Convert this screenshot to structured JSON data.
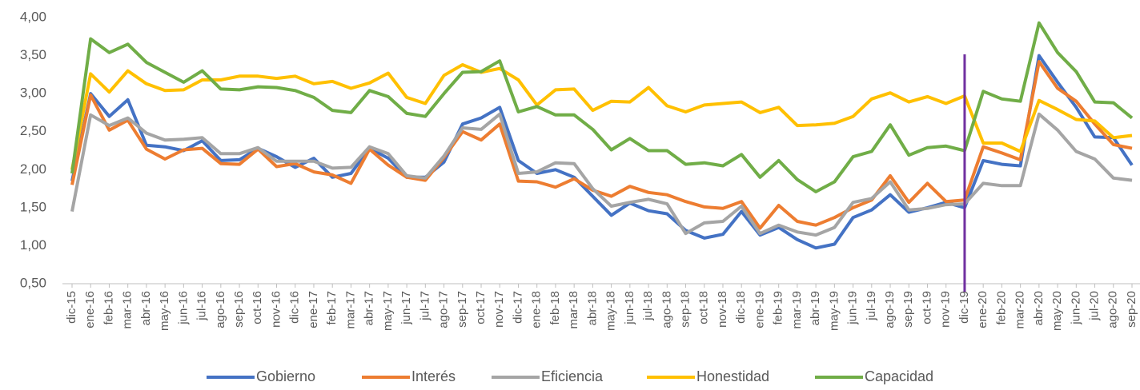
{
  "chart_data": {
    "type": "line",
    "categories": [
      "dic-15",
      "ene-16",
      "feb-16",
      "mar-16",
      "abr-16",
      "may-16",
      "jun-16",
      "jul-16",
      "ago-16",
      "sep-16",
      "oct-16",
      "nov-16",
      "dic-16",
      "ene-17",
      "feb-17",
      "mar-17",
      "abr-17",
      "may-17",
      "jun-17",
      "jul-17",
      "ago-17",
      "sep-17",
      "oct-17",
      "nov-17",
      "dic-17",
      "ene-18",
      "feb-18",
      "mar-18",
      "abr-18",
      "may-18",
      "jun-18",
      "jul-18",
      "ago-18",
      "sep-18",
      "oct-18",
      "nov-18",
      "dic-18",
      "ene-19",
      "feb-19",
      "mar-19",
      "abr-19",
      "may-19",
      "jun-19",
      "jul-19",
      "ago-19",
      "sep-19",
      "oct-19",
      "nov-19",
      "dic-19",
      "ene-20",
      "feb-20",
      "mar-20",
      "abr-20",
      "may-20",
      "jun-20",
      "jul-20",
      "ago-20",
      "sep-20"
    ],
    "series": [
      {
        "name": "Gobierno",
        "color": "#4472c4",
        "values": [
          1.85,
          3.0,
          2.7,
          2.92,
          2.32,
          2.3,
          2.25,
          2.38,
          2.12,
          2.13,
          2.28,
          2.17,
          2.03,
          2.15,
          1.9,
          1.95,
          2.28,
          2.15,
          1.9,
          1.9,
          2.1,
          2.6,
          2.68,
          2.82,
          2.12,
          1.95,
          2.0,
          1.9,
          1.65,
          1.4,
          1.56,
          1.46,
          1.42,
          1.2,
          1.1,
          1.15,
          1.45,
          1.14,
          1.24,
          1.08,
          0.97,
          1.02,
          1.37,
          1.47,
          1.67,
          1.44,
          1.5,
          1.57,
          1.5,
          2.12,
          2.07,
          2.05,
          3.5,
          3.15,
          2.82,
          2.43,
          2.42,
          2.06
        ]
      },
      {
        "name": "Interés",
        "color": "#ed7d31",
        "values": [
          1.8,
          2.98,
          2.52,
          2.65,
          2.27,
          2.14,
          2.26,
          2.28,
          2.08,
          2.07,
          2.27,
          2.04,
          2.08,
          1.97,
          1.93,
          1.82,
          2.27,
          2.06,
          1.9,
          1.86,
          2.16,
          2.5,
          2.39,
          2.6,
          1.85,
          1.84,
          1.77,
          1.88,
          1.73,
          1.65,
          1.78,
          1.7,
          1.67,
          1.58,
          1.51,
          1.49,
          1.58,
          1.23,
          1.53,
          1.32,
          1.27,
          1.37,
          1.5,
          1.6,
          1.92,
          1.57,
          1.82,
          1.58,
          1.6,
          2.3,
          2.22,
          2.13,
          3.42,
          3.07,
          2.9,
          2.6,
          2.33,
          2.28
        ]
      },
      {
        "name": "Eficiencia",
        "color": "#a5a5a5",
        "values": [
          1.45,
          2.72,
          2.58,
          2.68,
          2.48,
          2.39,
          2.4,
          2.42,
          2.21,
          2.21,
          2.29,
          2.11,
          2.11,
          2.11,
          2.02,
          2.03,
          2.3,
          2.21,
          1.92,
          1.89,
          2.18,
          2.55,
          2.53,
          2.73,
          1.95,
          1.97,
          2.09,
          2.08,
          1.75,
          1.52,
          1.57,
          1.61,
          1.55,
          1.16,
          1.3,
          1.32,
          1.52,
          1.16,
          1.27,
          1.18,
          1.14,
          1.24,
          1.57,
          1.62,
          1.84,
          1.47,
          1.49,
          1.54,
          1.55,
          1.82,
          1.79,
          1.79,
          2.73,
          2.52,
          2.24,
          2.14,
          1.89,
          1.86
        ]
      },
      {
        "name": "Honestidad",
        "color": "#ffc000",
        "values": [
          2.0,
          3.26,
          3.02,
          3.3,
          3.13,
          3.04,
          3.05,
          3.18,
          3.18,
          3.23,
          3.23,
          3.2,
          3.23,
          3.13,
          3.16,
          3.07,
          3.14,
          3.27,
          2.95,
          2.87,
          3.24,
          3.38,
          3.28,
          3.33,
          3.18,
          2.85,
          3.05,
          3.06,
          2.78,
          2.9,
          2.89,
          3.08,
          2.84,
          2.76,
          2.85,
          2.87,
          2.89,
          2.75,
          2.82,
          2.58,
          2.59,
          2.61,
          2.7,
          2.93,
          3.01,
          2.89,
          2.96,
          2.87,
          2.97,
          2.35,
          2.35,
          2.24,
          2.91,
          2.79,
          2.66,
          2.64,
          2.42,
          2.45
        ]
      },
      {
        "name": "Capacidad",
        "color": "#70ad47",
        "values": [
          1.95,
          3.72,
          3.54,
          3.65,
          3.41,
          3.28,
          3.15,
          3.3,
          3.06,
          3.05,
          3.09,
          3.08,
          3.04,
          2.95,
          2.78,
          2.75,
          3.04,
          2.96,
          2.74,
          2.7,
          3.0,
          3.28,
          3.29,
          3.43,
          2.76,
          2.83,
          2.72,
          2.72,
          2.53,
          2.26,
          2.41,
          2.25,
          2.25,
          2.07,
          2.09,
          2.05,
          2.2,
          1.9,
          2.12,
          1.87,
          1.71,
          1.84,
          2.17,
          2.24,
          2.59,
          2.19,
          2.29,
          2.31,
          2.25,
          3.03,
          2.93,
          2.9,
          3.93,
          3.54,
          3.29,
          2.89,
          2.88,
          2.68
        ]
      }
    ],
    "ylim": [
      0.5,
      4.0
    ],
    "yticks": [
      {
        "value": 0.5,
        "label": "0,50"
      },
      {
        "value": 1.0,
        "label": "1,00"
      },
      {
        "value": 1.5,
        "label": "1,50"
      },
      {
        "value": 2.0,
        "label": "2,00"
      },
      {
        "value": 2.5,
        "label": "2,50"
      },
      {
        "value": 3.0,
        "label": "3,00"
      },
      {
        "value": 3.5,
        "label": "3,50"
      },
      {
        "value": 4.0,
        "label": "4,00"
      }
    ],
    "grid": false,
    "legend": "bottom",
    "vertical_line": {
      "at": "dic-19",
      "color": "#7030a0"
    }
  }
}
